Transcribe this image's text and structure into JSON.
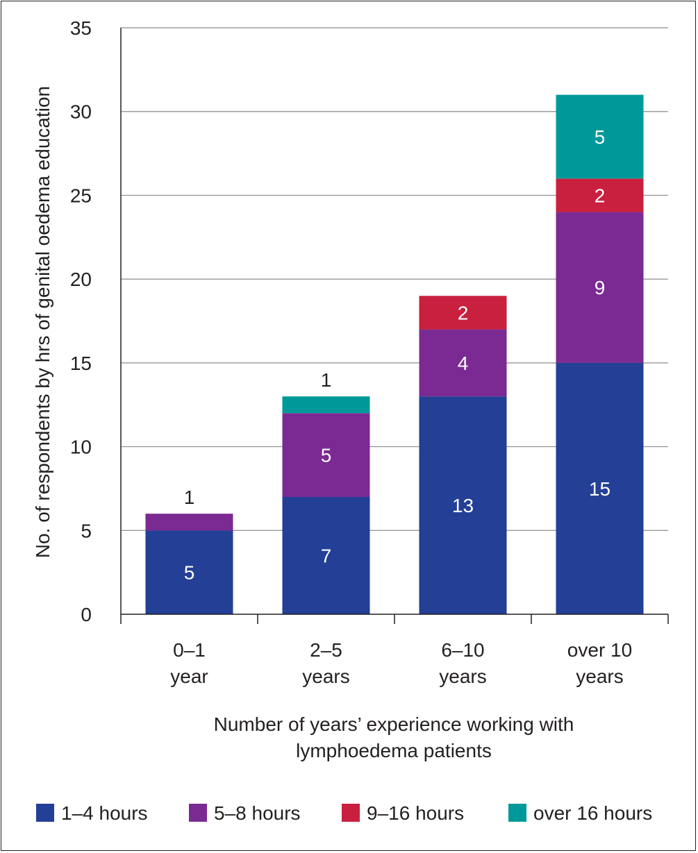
{
  "chart_data": {
    "type": "bar",
    "stacked": true,
    "title": "",
    "xlabel": [
      "Number of years’ experience working with",
      "lymphoedema patients"
    ],
    "ylabel": "No. of respondents by hrs of genital oedema education",
    "ylim": [
      0,
      35
    ],
    "yticks": [
      "0",
      "5",
      "10",
      "15",
      "20",
      "25",
      "30",
      "35"
    ],
    "grid": true,
    "legend_position": "bottom",
    "categories": [
      [
        "0–1",
        "year"
      ],
      [
        "2–5",
        "years"
      ],
      [
        "6–10",
        "years"
      ],
      [
        "over 10",
        "years"
      ]
    ],
    "series": [
      {
        "name": "1–4 hours",
        "color": "#233f96",
        "values": [
          5,
          7,
          13,
          15
        ]
      },
      {
        "name": "5–8 hours",
        "color": "#7b2a93",
        "values": [
          1,
          5,
          4,
          9
        ]
      },
      {
        "name": "9–16 hours",
        "color": "#c8203e",
        "values": [
          0,
          0,
          2,
          2
        ]
      },
      {
        "name": "over 16 hours",
        "color": "#009999",
        "values": [
          0,
          1,
          0,
          5
        ]
      }
    ]
  }
}
